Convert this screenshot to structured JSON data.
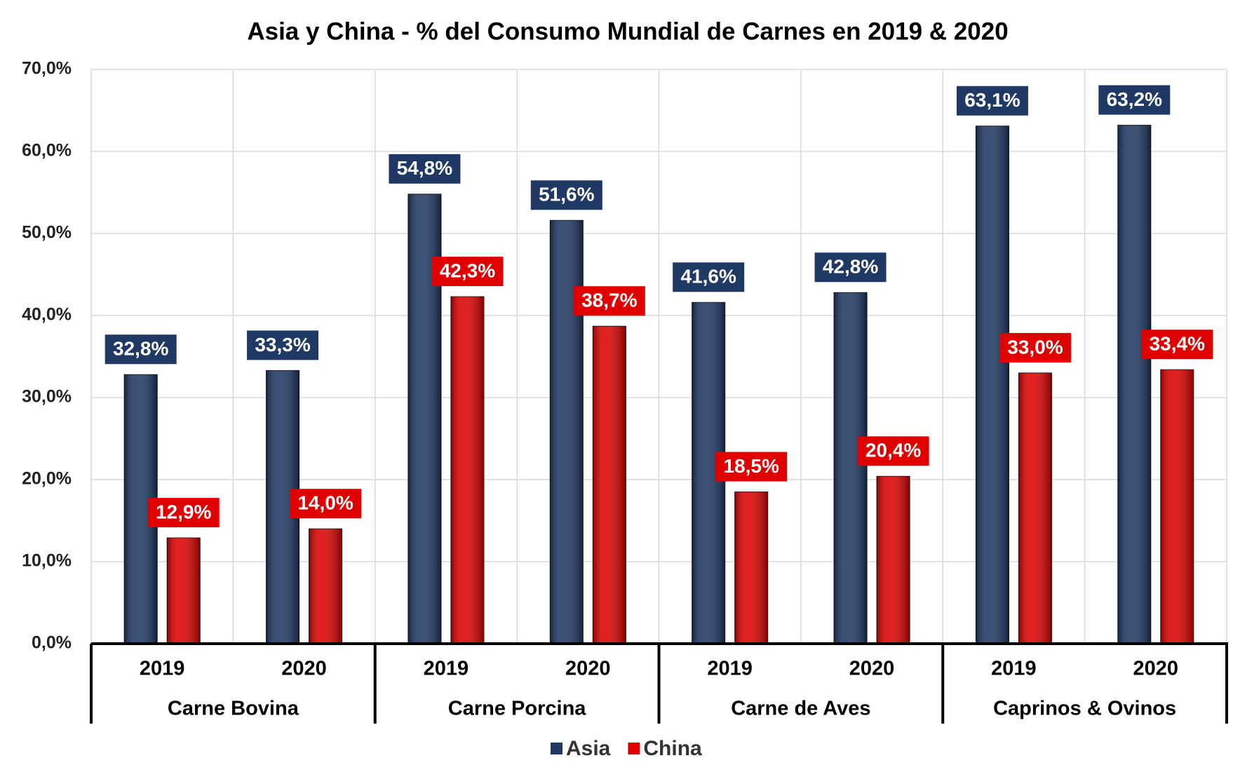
{
  "chart_data": {
    "type": "bar",
    "title": "Asia y China - % del Consumo Mundial de Carnes en 2019 & 2020",
    "categories": [
      "2019",
      "2020",
      "2019",
      "2020",
      "2019",
      "2020",
      "2019",
      "2020"
    ],
    "groups": [
      "Carne Bovina",
      "Carne Porcina",
      "Carne de Aves",
      "Caprinos & Ovinos"
    ],
    "series": [
      {
        "name": "Asia",
        "color": "#1f3864",
        "values": [
          32.8,
          33.3,
          54.8,
          51.6,
          41.6,
          42.8,
          63.1,
          63.2
        ],
        "value_labels": [
          "32,8%",
          "33,3%",
          "54,8%",
          "51,6%",
          "41,6%",
          "42,8%",
          "63,1%",
          "63,2%"
        ]
      },
      {
        "name": "China",
        "color": "#e00000",
        "values": [
          12.9,
          14.0,
          42.3,
          38.7,
          18.5,
          20.4,
          33.0,
          33.4
        ],
        "value_labels": [
          "12,9%",
          "14,0%",
          "42,3%",
          "38,7%",
          "18,5%",
          "20,4%",
          "33,0%",
          "33,4%"
        ]
      }
    ],
    "ylim": [
      0,
      70
    ],
    "yticks": [
      {
        "value": 0,
        "label": "0,0%"
      },
      {
        "value": 10,
        "label": "10,0%"
      },
      {
        "value": 20,
        "label": "20,0%"
      },
      {
        "value": 30,
        "label": "30,0%"
      },
      {
        "value": 40,
        "label": "40,0%"
      },
      {
        "value": 50,
        "label": "50,0%"
      },
      {
        "value": 60,
        "label": "60,0%"
      },
      {
        "value": 70,
        "label": "70,0%"
      }
    ],
    "grid": true,
    "legend": "bottom"
  }
}
